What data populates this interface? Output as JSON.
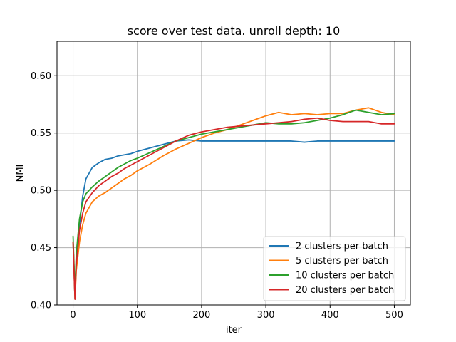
{
  "chart_data": {
    "type": "line",
    "title": "score over test data. unroll depth: 10",
    "xlabel": "iter",
    "ylabel": "NMI",
    "xlim": [
      -25,
      525
    ],
    "ylim": [
      0.4,
      0.63
    ],
    "xticks": [
      0,
      100,
      200,
      300,
      400,
      500
    ],
    "xtick_labels": [
      "0",
      "100",
      "200",
      "300",
      "400",
      "500"
    ],
    "yticks": [
      0.4,
      0.45,
      0.5,
      0.55,
      0.6
    ],
    "ytick_labels": [
      "0.40",
      "0.45",
      "0.50",
      "0.55",
      "0.60"
    ],
    "grid": true,
    "legend_position": "lower-right",
    "series": [
      {
        "name": "2 clusters per batch",
        "color": "#1f77b4",
        "x": [
          0,
          3,
          5,
          10,
          15,
          20,
          30,
          40,
          50,
          60,
          70,
          80,
          90,
          100,
          120,
          140,
          160,
          180,
          200,
          220,
          240,
          260,
          280,
          300,
          320,
          340,
          360,
          380,
          400,
          420,
          440,
          460,
          480,
          500
        ],
        "y": [
          0.455,
          0.405,
          0.44,
          0.47,
          0.495,
          0.51,
          0.52,
          0.524,
          0.527,
          0.528,
          0.53,
          0.531,
          0.532,
          0.534,
          0.537,
          0.54,
          0.543,
          0.544,
          0.543,
          0.543,
          0.543,
          0.543,
          0.543,
          0.543,
          0.543,
          0.543,
          0.542,
          0.543,
          0.543,
          0.543,
          0.543,
          0.543,
          0.543,
          0.543
        ]
      },
      {
        "name": "5 clusters per batch",
        "color": "#ff7f0e",
        "x": [
          0,
          3,
          5,
          10,
          15,
          20,
          30,
          40,
          50,
          60,
          70,
          80,
          90,
          100,
          120,
          140,
          160,
          180,
          200,
          220,
          240,
          260,
          280,
          300,
          320,
          340,
          360,
          380,
          400,
          420,
          440,
          460,
          480,
          500
        ],
        "y": [
          0.455,
          0.405,
          0.43,
          0.455,
          0.47,
          0.48,
          0.49,
          0.495,
          0.498,
          0.502,
          0.506,
          0.51,
          0.513,
          0.517,
          0.523,
          0.53,
          0.536,
          0.541,
          0.546,
          0.55,
          0.553,
          0.557,
          0.561,
          0.565,
          0.568,
          0.566,
          0.567,
          0.566,
          0.567,
          0.567,
          0.57,
          0.572,
          0.568,
          0.566
        ]
      },
      {
        "name": "10 clusters per batch",
        "color": "#2ca02c",
        "x": [
          0,
          3,
          5,
          10,
          15,
          20,
          30,
          40,
          50,
          60,
          70,
          80,
          90,
          100,
          120,
          140,
          160,
          180,
          200,
          220,
          240,
          260,
          280,
          300,
          320,
          340,
          360,
          380,
          400,
          420,
          440,
          460,
          480,
          500
        ],
        "y": [
          0.46,
          0.41,
          0.445,
          0.475,
          0.49,
          0.497,
          0.503,
          0.508,
          0.512,
          0.516,
          0.52,
          0.523,
          0.526,
          0.528,
          0.533,
          0.538,
          0.543,
          0.546,
          0.549,
          0.551,
          0.553,
          0.555,
          0.557,
          0.559,
          0.558,
          0.558,
          0.559,
          0.561,
          0.563,
          0.566,
          0.57,
          0.568,
          0.566,
          0.567
        ]
      },
      {
        "name": "20 clusters per batch",
        "color": "#d62728",
        "x": [
          0,
          3,
          5,
          10,
          15,
          20,
          30,
          40,
          50,
          60,
          70,
          80,
          90,
          100,
          120,
          140,
          160,
          180,
          200,
          220,
          240,
          260,
          280,
          300,
          320,
          340,
          360,
          380,
          400,
          420,
          440,
          460,
          480,
          500
        ],
        "y": [
          0.455,
          0.405,
          0.435,
          0.465,
          0.48,
          0.49,
          0.498,
          0.504,
          0.508,
          0.512,
          0.515,
          0.519,
          0.522,
          0.525,
          0.531,
          0.537,
          0.543,
          0.548,
          0.551,
          0.553,
          0.555,
          0.556,
          0.557,
          0.558,
          0.559,
          0.56,
          0.562,
          0.563,
          0.561,
          0.56,
          0.56,
          0.56,
          0.558,
          0.558
        ]
      }
    ]
  }
}
